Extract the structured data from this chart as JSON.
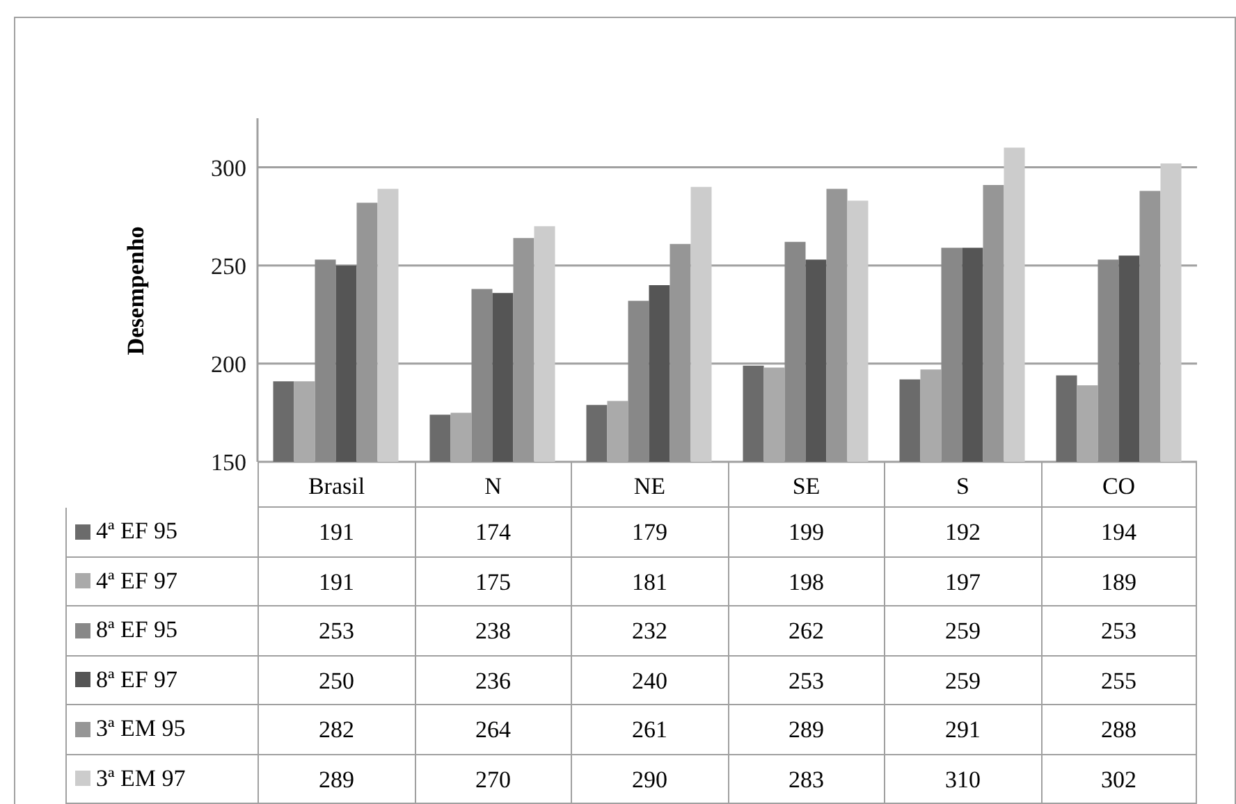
{
  "chart_data": {
    "type": "bar",
    "ylabel": "Desempenho",
    "categories": [
      "Brasil",
      "N",
      "NE",
      "SE",
      "S",
      "CO"
    ],
    "series": [
      {
        "name": "4ª EF 95",
        "color": "#6b6b6b",
        "values": [
          191,
          174,
          179,
          199,
          192,
          194
        ]
      },
      {
        "name": "4ª EF 97",
        "color": "#aaaaaa",
        "values": [
          191,
          175,
          181,
          198,
          197,
          189
        ]
      },
      {
        "name": "8ª EF 95",
        "color": "#888888",
        "values": [
          253,
          238,
          232,
          262,
          259,
          253
        ]
      },
      {
        "name": "8ª EF 97",
        "color": "#555555",
        "values": [
          250,
          236,
          240,
          253,
          259,
          255
        ]
      },
      {
        "name": "3ª EM 95",
        "color": "#969696",
        "values": [
          282,
          264,
          261,
          289,
          291,
          288
        ]
      },
      {
        "name": "3ª EM 97",
        "color": "#cccccc",
        "values": [
          289,
          270,
          290,
          283,
          310,
          302
        ]
      }
    ],
    "ylim": [
      150,
      325
    ],
    "yticks": [
      150,
      200,
      250,
      300
    ],
    "grid": "y",
    "legend": "bottom",
    "data_labels": true
  }
}
